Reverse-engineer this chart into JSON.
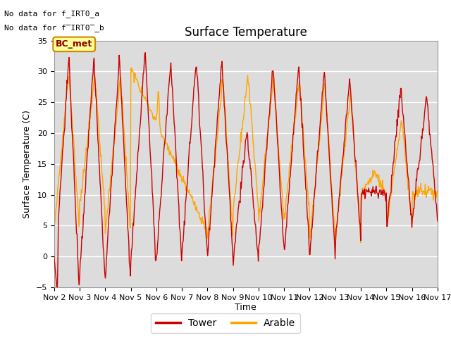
{
  "title": "Surface Temperature",
  "ylabel": "Surface Temperature (C)",
  "xlabel": "Time",
  "ylim": [
    -5,
    35
  ],
  "bg_color": "#dcdcdc",
  "plot_bg_color": "#dcdcdc",
  "tower_color": "#cc0000",
  "arable_color": "#ffa500",
  "bc_met_color": "#ffff99",
  "bc_met_edge": "#cc8800",
  "legend_tower": "Tower",
  "legend_arable": "Arable",
  "no_data_text1": "No data for f_IRT0_a",
  "no_data_text2": "No data for f̅IRT0̅_b",
  "bc_met_label": "BC_met",
  "xtick_labels": [
    "Nov 2",
    "Nov 3",
    "Nov 4",
    "Nov 5",
    "Nov 6",
    "Nov 7",
    "Nov 8",
    "Nov 9",
    "Nov 10",
    "Nov 11",
    "Nov 12",
    "Nov 13",
    "Nov 14",
    "Nov 15",
    "Nov 16",
    "Nov 17"
  ],
  "ytick_values": [
    -5,
    0,
    5,
    10,
    15,
    20,
    25,
    30,
    35
  ],
  "title_fontsize": 12,
  "label_fontsize": 9,
  "tick_fontsize": 8,
  "figsize": [
    6.4,
    4.8
  ],
  "dpi": 100
}
